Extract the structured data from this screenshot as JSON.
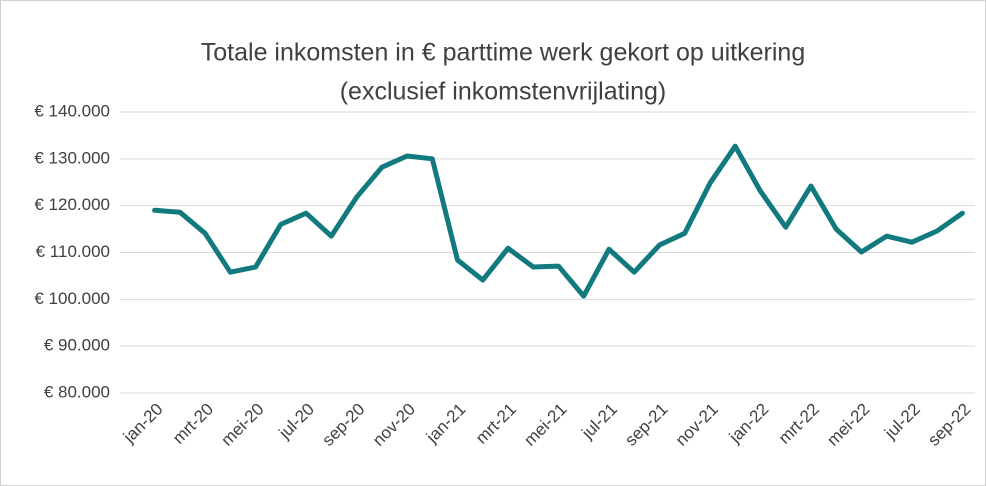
{
  "chart_data": {
    "type": "line",
    "title": [
      "Totale inkomsten in € parttime werk gekort op uitkering",
      "(exclusief inkomstenvrijlating)"
    ],
    "categories": [
      "jan-20",
      null,
      "mrt-20",
      null,
      "mei-20",
      null,
      "jul-20",
      null,
      "sep-20",
      null,
      "nov-20",
      null,
      "jan-21",
      null,
      "mrt-21",
      null,
      "mei-21",
      null,
      "jul-21",
      null,
      "sep-21",
      null,
      "nov-21",
      null,
      "jan-22",
      null,
      "mrt-22",
      null,
      "mei-22",
      null,
      "jul-22",
      null,
      "sep-22"
    ],
    "series": [
      {
        "name": "Totale inkomsten",
        "color": "#127a7e",
        "values": [
          119000,
          118600,
          114100,
          105800,
          106900,
          116000,
          118400,
          113500,
          121800,
          128200,
          130600,
          130000,
          108400,
          104100,
          110900,
          106900,
          107100,
          100700,
          110700,
          105800,
          111600,
          114100,
          124800,
          132700,
          123100,
          115400,
          124200,
          115000,
          110100,
          113500,
          112200,
          114600,
          118400
        ]
      }
    ],
    "ylim": [
      80000,
      140000
    ],
    "yticks": [
      {
        "value": 80000,
        "label": "€ 80.000"
      },
      {
        "value": 90000,
        "label": "€ 90.000"
      },
      {
        "value": 100000,
        "label": "€ 100.000"
      },
      {
        "value": 110000,
        "label": "€ 110.000"
      },
      {
        "value": 120000,
        "label": "€ 120.000"
      },
      {
        "value": 130000,
        "label": "€ 130.000"
      },
      {
        "value": 140000,
        "label": "€ 140.000"
      }
    ],
    "grid": true
  }
}
